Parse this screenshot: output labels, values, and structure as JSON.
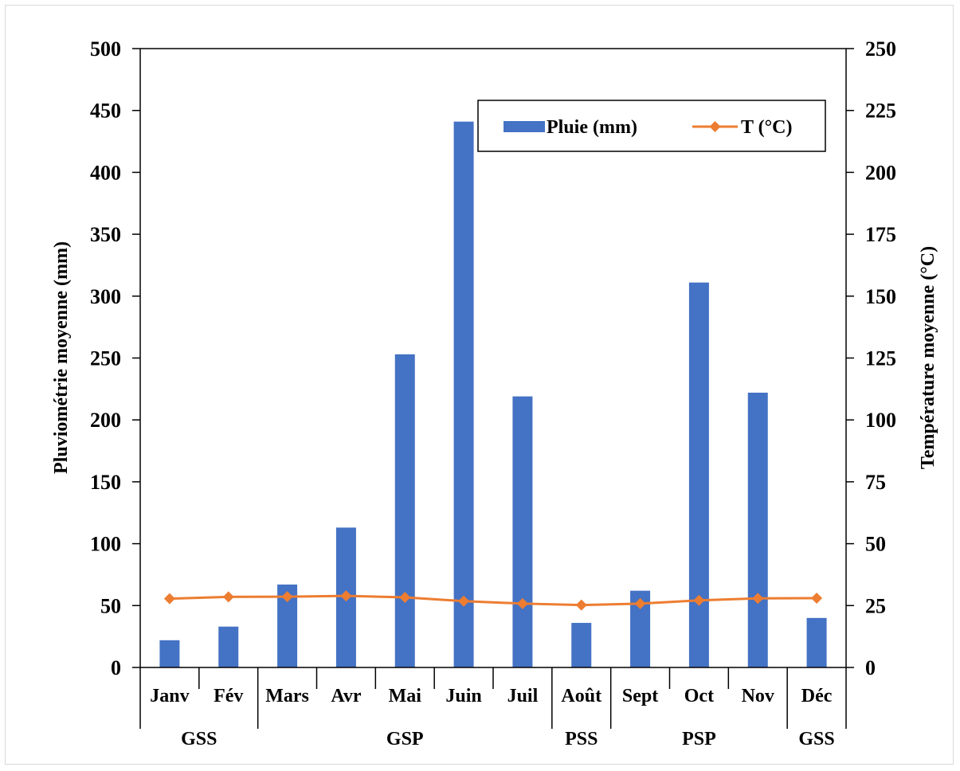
{
  "chart_data": {
    "type": "bar+line",
    "categories": [
      "Janv",
      "Fév",
      "Mars",
      "Avr",
      "Mai",
      "Juin",
      "Juil",
      "Août",
      "Sept",
      "Oct",
      "Nov",
      "Déc"
    ],
    "groups": [
      {
        "label": "GSS",
        "span": 2
      },
      {
        "label": "GSP",
        "span": 5
      },
      {
        "label": "PSS",
        "span": 1
      },
      {
        "label": "PSP",
        "span": 3
      },
      {
        "label": "GSS",
        "span": 1
      }
    ],
    "series": [
      {
        "name": "Pluie (mm)",
        "type": "bar",
        "axis": "left",
        "color": "#4472c4",
        "values": [
          22,
          33,
          67,
          113,
          253,
          441,
          219,
          36,
          62,
          311,
          222,
          40
        ]
      },
      {
        "name": "T (°C)",
        "type": "line",
        "axis": "right",
        "color": "#ed7d31",
        "values": [
          27.8,
          28.5,
          28.6,
          28.9,
          28.3,
          26.8,
          25.8,
          25.2,
          25.8,
          27.1,
          27.9,
          28.0
        ]
      }
    ],
    "ylabel_left": "Pluviométrie moyenne (mm)",
    "ylabel_right": "Température moyenne (°C)",
    "ylim_left": [
      0,
      500
    ],
    "ylim_right": [
      0,
      250
    ],
    "yticks_left": [
      "0",
      "50",
      "100",
      "150",
      "200",
      "250",
      "300",
      "350",
      "400",
      "450",
      "500"
    ],
    "yticks_right": [
      "0",
      "25",
      "50",
      "75",
      "100",
      "125",
      "150",
      "175",
      "200",
      "225",
      "250"
    ],
    "grid": false,
    "legend_position": "top-right"
  }
}
